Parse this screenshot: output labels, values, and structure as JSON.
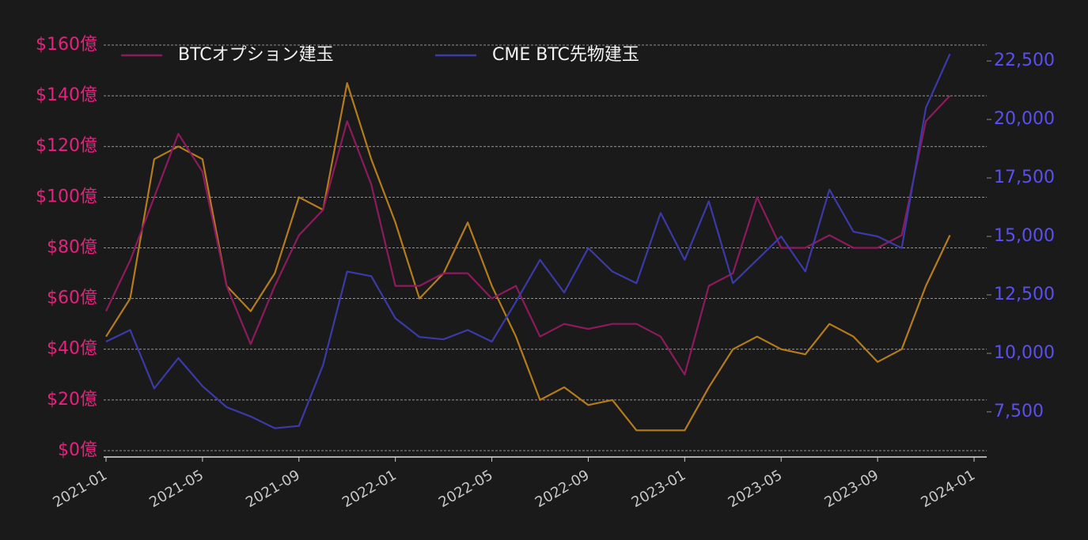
{
  "chart_data": {
    "type": "line",
    "x": [
      "2021-01",
      "2021-02",
      "2021-03",
      "2021-04",
      "2021-05",
      "2021-06",
      "2021-07",
      "2021-08",
      "2021-09",
      "2021-10",
      "2021-11",
      "2021-12",
      "2022-01",
      "2022-02",
      "2022-03",
      "2022-04",
      "2022-05",
      "2022-06",
      "2022-07",
      "2022-08",
      "2022-09",
      "2022-10",
      "2022-11",
      "2022-12",
      "2023-01",
      "2023-02",
      "2023-03",
      "2023-04",
      "2023-05",
      "2023-06",
      "2023-07",
      "2023-08",
      "2023-09",
      "2023-10",
      "2023-11",
      "2023-12"
    ],
    "series": [
      {
        "color": "#b57c1c",
        "axis": "y",
        "values": [
          45,
          60,
          115,
          120,
          115,
          65,
          55,
          70,
          100,
          95,
          145,
          115,
          90,
          60,
          70,
          90,
          65,
          45,
          20,
          25,
          18,
          20,
          8,
          8,
          8,
          25,
          40,
          45,
          40,
          38,
          50,
          45,
          35,
          40,
          65,
          85
        ]
      },
      {
        "name": "BTCオプション建玉",
        "color": "#8e1a5e",
        "axis": "y",
        "values": [
          55,
          75,
          100,
          125,
          110,
          65,
          42,
          65,
          85,
          95,
          130,
          105,
          65,
          65,
          70,
          70,
          60,
          65,
          45,
          50,
          48,
          50,
          50,
          45,
          30,
          65,
          70,
          100,
          80,
          80,
          85,
          80,
          80,
          85,
          130,
          140
        ]
      },
      {
        "name": "CME BTC先物建玉",
        "color": "#3b3aa8",
        "axis": "y2",
        "values": [
          10500,
          11000,
          8500,
          9800,
          8600,
          7700,
          7300,
          6800,
          6900,
          9500,
          13500,
          13300,
          11500,
          10700,
          10600,
          11000,
          10500,
          12200,
          14000,
          12600,
          14500,
          13500,
          13000,
          16000,
          14000,
          16500,
          13000,
          14000,
          15000,
          13500,
          17000,
          15200,
          15000,
          14500,
          20500,
          22800
        ]
      }
    ],
    "xlim": [
      "2021-01",
      "2024-01"
    ],
    "xticks": [
      "2021-01",
      "2021-05",
      "2021-09",
      "2022-01",
      "2022-05",
      "2022-09",
      "2023-01",
      "2023-05",
      "2023-09",
      "2024-01"
    ],
    "ylim": [
      -2.5,
      160
    ],
    "yticks": [
      {
        "value": 0,
        "label": "$0億"
      },
      {
        "value": 20,
        "label": "$20億"
      },
      {
        "value": 40,
        "label": "$40億"
      },
      {
        "value": 60,
        "label": "$60億"
      },
      {
        "value": 80,
        "label": "$80億"
      },
      {
        "value": 100,
        "label": "$100億"
      },
      {
        "value": 120,
        "label": "$120億"
      },
      {
        "value": 140,
        "label": "$140億"
      },
      {
        "value": 160,
        "label": "$160億"
      }
    ],
    "y2lim": [
      5570,
      23180
    ],
    "y2ticks": [
      {
        "value": 7500,
        "label": "7,500"
      },
      {
        "value": 10000,
        "label": "10,000"
      },
      {
        "value": 12500,
        "label": "12,500"
      },
      {
        "value": 15000,
        "label": "15,000"
      },
      {
        "value": 17500,
        "label": "17,500"
      },
      {
        "value": 20000,
        "label": "20,000"
      },
      {
        "value": 22500,
        "label": "22,500"
      }
    ],
    "grid": true
  }
}
